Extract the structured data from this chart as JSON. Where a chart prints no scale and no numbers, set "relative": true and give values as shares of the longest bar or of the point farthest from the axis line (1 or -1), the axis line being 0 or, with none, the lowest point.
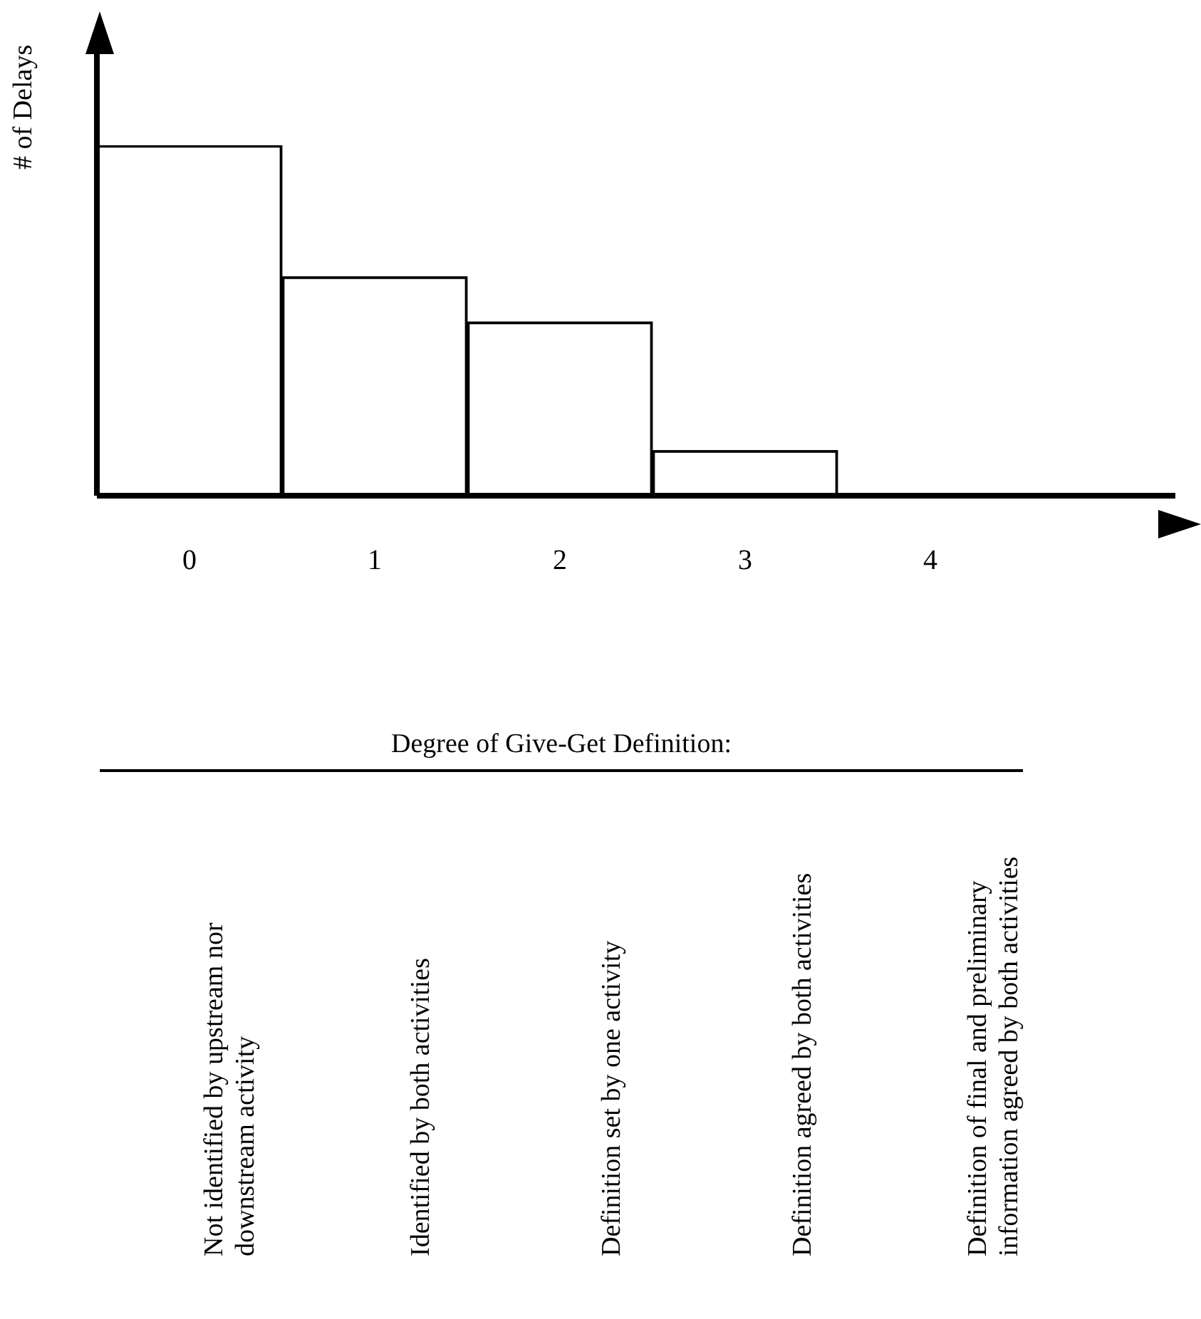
{
  "chart_data": {
    "type": "bar",
    "relative": true,
    "categories": [
      "0",
      "1",
      "2",
      "3",
      "4"
    ],
    "values": [
      1,
      0.625,
      0.496,
      0.129,
      0
    ],
    "color": "#ffffff",
    "ylabel": "# of Delays",
    "annotations": [
      "Degree of Give-Get Definition:",
      "Not identified by upstream nor downstream activity",
      "Identified by both activities",
      "Definition set by one activity",
      "Definition agreed by both activities",
      "Definition of final and preliminary information agreed by both activities"
    ],
    "grid": false,
    "legend": false
  }
}
